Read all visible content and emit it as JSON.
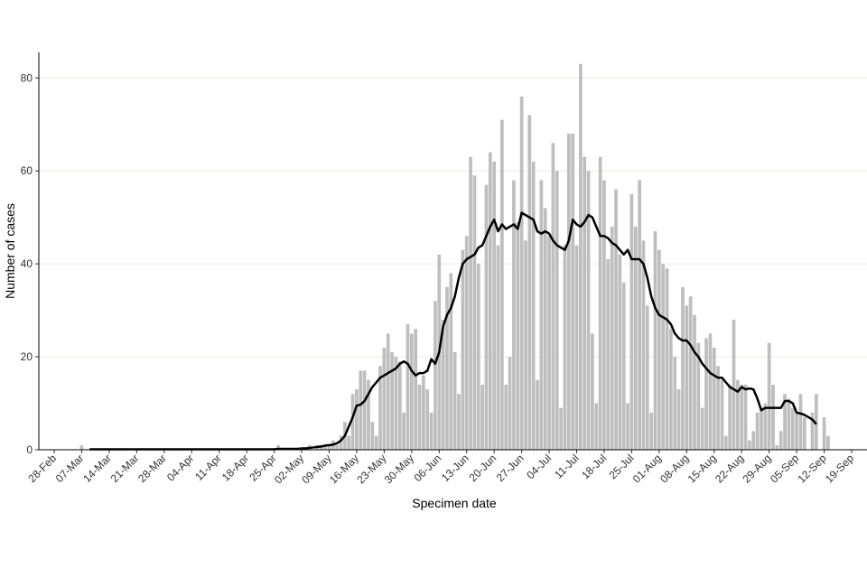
{
  "chart_data": {
    "type": "combo",
    "x_label": "Specimen date",
    "y_label": "Number of cases",
    "x": [
      "28-Feb",
      "01-Mar",
      "02-Mar",
      "03-Mar",
      "04-Mar",
      "05-Mar",
      "06-Mar",
      "07-Mar",
      "08-Mar",
      "09-Mar",
      "10-Mar",
      "11-Mar",
      "12-Mar",
      "13-Mar",
      "14-Mar",
      "15-Mar",
      "16-Mar",
      "17-Mar",
      "18-Mar",
      "19-Mar",
      "20-Mar",
      "21-Mar",
      "22-Mar",
      "23-Mar",
      "24-Mar",
      "25-Mar",
      "26-Mar",
      "27-Mar",
      "28-Mar",
      "29-Mar",
      "30-Mar",
      "31-Mar",
      "01-Apr",
      "02-Apr",
      "03-Apr",
      "04-Apr",
      "05-Apr",
      "06-Apr",
      "07-Apr",
      "08-Apr",
      "09-Apr",
      "10-Apr",
      "11-Apr",
      "12-Apr",
      "13-Apr",
      "14-Apr",
      "15-Apr",
      "16-Apr",
      "17-Apr",
      "18-Apr",
      "19-Apr",
      "20-Apr",
      "21-Apr",
      "22-Apr",
      "23-Apr",
      "24-Apr",
      "25-Apr",
      "26-Apr",
      "27-Apr",
      "28-Apr",
      "29-Apr",
      "30-Apr",
      "01-May",
      "02-May",
      "03-May",
      "04-May",
      "05-May",
      "06-May",
      "07-May",
      "08-May",
      "09-May",
      "10-May",
      "11-May",
      "12-May",
      "13-May",
      "14-May",
      "15-May",
      "16-May",
      "17-May",
      "18-May",
      "19-May",
      "20-May",
      "21-May",
      "22-May",
      "23-May",
      "24-May",
      "25-May",
      "26-May",
      "27-May",
      "28-May",
      "29-May",
      "30-May",
      "31-May",
      "01-Jun",
      "02-Jun",
      "03-Jun",
      "04-Jun",
      "05-Jun",
      "06-Jun",
      "07-Jun",
      "08-Jun",
      "09-Jun",
      "10-Jun",
      "11-Jun",
      "12-Jun",
      "13-Jun",
      "14-Jun",
      "15-Jun",
      "16-Jun",
      "17-Jun",
      "18-Jun",
      "19-Jun",
      "20-Jun",
      "21-Jun",
      "22-Jun",
      "23-Jun",
      "24-Jun",
      "25-Jun",
      "26-Jun",
      "27-Jun",
      "28-Jun",
      "29-Jun",
      "30-Jun",
      "01-Jul",
      "02-Jul",
      "03-Jul",
      "04-Jul",
      "05-Jul",
      "06-Jul",
      "07-Jul",
      "08-Jul",
      "09-Jul",
      "10-Jul",
      "11-Jul",
      "12-Jul",
      "13-Jul",
      "14-Jul",
      "15-Jul",
      "16-Jul",
      "17-Jul",
      "18-Jul",
      "19-Jul",
      "20-Jul",
      "21-Jul",
      "22-Jul",
      "23-Jul",
      "24-Jul",
      "25-Jul",
      "26-Jul",
      "27-Jul",
      "28-Jul",
      "29-Jul",
      "30-Jul",
      "31-Jul",
      "01-Aug",
      "02-Aug",
      "03-Aug",
      "04-Aug",
      "05-Aug",
      "06-Aug",
      "07-Aug",
      "08-Aug",
      "09-Aug",
      "10-Aug",
      "11-Aug",
      "12-Aug",
      "13-Aug",
      "14-Aug",
      "15-Aug",
      "16-Aug",
      "17-Aug",
      "18-Aug",
      "19-Aug",
      "20-Aug",
      "21-Aug",
      "22-Aug",
      "23-Aug",
      "24-Aug",
      "25-Aug",
      "26-Aug",
      "27-Aug",
      "28-Aug",
      "29-Aug",
      "30-Aug",
      "31-Aug",
      "01-Sep",
      "02-Sep",
      "03-Sep",
      "04-Sep",
      "05-Sep",
      "06-Sep",
      "07-Sep",
      "08-Sep",
      "09-Sep",
      "10-Sep",
      "11-Sep",
      "12-Sep",
      "13-Sep",
      "14-Sep",
      "15-Sep",
      "16-Sep",
      "17-Sep",
      "18-Sep",
      "19-Sep"
    ],
    "series": [
      {
        "type": "bar",
        "color": "#bebebe",
        "values": [
          0,
          0,
          0,
          0,
          0,
          0,
          0,
          1,
          0,
          0,
          0,
          0,
          0,
          0,
          0,
          0,
          0,
          0,
          0,
          0,
          0,
          0,
          0,
          0,
          0,
          0,
          0,
          0,
          0,
          0,
          0,
          0,
          0,
          0,
          0,
          0,
          0,
          0,
          0,
          0,
          0,
          0,
          0,
          0,
          0,
          0,
          0,
          0,
          0,
          0,
          0,
          0,
          0,
          0,
          0,
          0,
          0,
          1,
          0,
          0,
          0,
          0,
          0,
          0,
          0,
          1,
          0,
          1,
          1,
          1,
          1,
          2,
          1,
          3,
          6,
          3,
          12,
          13,
          17,
          17,
          15,
          6,
          3,
          18,
          22,
          25,
          21,
          20,
          19,
          8,
          27,
          25,
          26,
          14,
          16,
          13,
          8,
          32,
          42,
          28,
          35,
          38,
          21,
          12,
          43,
          46,
          63,
          59,
          40,
          14,
          57,
          64,
          62,
          44,
          71,
          14,
          20,
          58,
          49,
          76,
          45,
          72,
          62,
          15,
          58,
          52,
          46,
          66,
          60,
          9,
          44,
          68,
          68,
          44,
          83,
          63,
          60,
          25,
          10,
          63,
          58,
          41,
          48,
          56,
          42,
          36,
          10,
          55,
          48,
          58,
          45,
          31,
          8,
          47,
          43,
          40,
          39,
          26,
          20,
          13,
          35,
          31,
          33,
          29,
          23,
          9,
          24,
          25,
          22,
          18,
          15,
          3,
          14,
          28,
          15,
          14,
          14,
          2,
          4,
          8,
          9,
          10,
          23,
          14,
          1,
          4,
          12,
          11,
          9,
          8,
          12,
          7,
          0,
          8,
          12,
          0,
          7,
          3,
          null,
          null,
          null,
          null,
          null,
          null
        ]
      },
      {
        "type": "line",
        "color": "#000000",
        "values": [
          null,
          null,
          null,
          null,
          null,
          null,
          null,
          null,
          null,
          0.1,
          0.1,
          0.1,
          0.1,
          0.1,
          0.1,
          0.1,
          0.1,
          0.1,
          0.1,
          0.1,
          0.1,
          0.1,
          0.1,
          0.1,
          0.1,
          0.1,
          0.1,
          0.1,
          0.1,
          0.1,
          0.1,
          0.1,
          0.1,
          0.1,
          0.1,
          0.1,
          0.1,
          0.1,
          0.1,
          0.1,
          0.1,
          0.1,
          0.1,
          0.1,
          0.1,
          0.1,
          0.1,
          0.1,
          0.1,
          0.1,
          0.1,
          0.1,
          0.1,
          0.1,
          0.1,
          0.1,
          0.1,
          0.2,
          0.2,
          0.2,
          0.2,
          0.2,
          0.2,
          0.3,
          0.3,
          0.4,
          0.5,
          0.6,
          0.7,
          0.9,
          1,
          1.1,
          1.4,
          2,
          3,
          5,
          7,
          9.5,
          9.7,
          10.5,
          12,
          13.5,
          14.5,
          15.5,
          16,
          16.5,
          17,
          17.5,
          18.5,
          19,
          18.5,
          17,
          16,
          16.5,
          16.5,
          17,
          19.5,
          18.5,
          21,
          26.5,
          29,
          30.5,
          33,
          37,
          40,
          41,
          41.5,
          42,
          43.5,
          44,
          46,
          48,
          49.5,
          47,
          48.5,
          47.5,
          48,
          48.5,
          47.5,
          51,
          50.5,
          50,
          49.5,
          47,
          46.5,
          47,
          46.5,
          45,
          44,
          43.5,
          43,
          45,
          49.5,
          48.5,
          48,
          49,
          50.5,
          50,
          48,
          46,
          46,
          45.5,
          44.5,
          44,
          43,
          42,
          43,
          41,
          41,
          41,
          40,
          37,
          33,
          30.5,
          29,
          28.5,
          28,
          27,
          25,
          24,
          23.5,
          23.5,
          22.5,
          21,
          20,
          18.5,
          17.5,
          16.5,
          16,
          15.5,
          15.5,
          14.5,
          13.5,
          13,
          12.5,
          13.5,
          13,
          13.2,
          13,
          11,
          8.5,
          9,
          9,
          9,
          9,
          9,
          10.5,
          10.5,
          10,
          8,
          7.8,
          7.5,
          7,
          6.5,
          5.5,
          null,
          null,
          null,
          null,
          null,
          null,
          null,
          null,
          null
        ]
      }
    ],
    "ylim": [
      0,
      85.5
    ],
    "yticks": [
      0,
      20,
      40,
      60,
      80
    ],
    "xticks": [
      "28-Feb",
      "07-Mar",
      "14-Mar",
      "21-Mar",
      "28-Mar",
      "04-Apr",
      "11-Apr",
      "18-Apr",
      "25-Apr",
      "02-May",
      "09-May",
      "16-May",
      "23-May",
      "30-May",
      "06-Jun",
      "13-Jun",
      "20-Jun",
      "27-Jun",
      "04-Jul",
      "11-Jul",
      "18-Jul",
      "25-Jul",
      "01-Aug",
      "08-Aug",
      "15-Aug",
      "22-Aug",
      "29-Aug",
      "05-Sep",
      "12-Sep",
      "19-Sep"
    ],
    "grid": true
  }
}
